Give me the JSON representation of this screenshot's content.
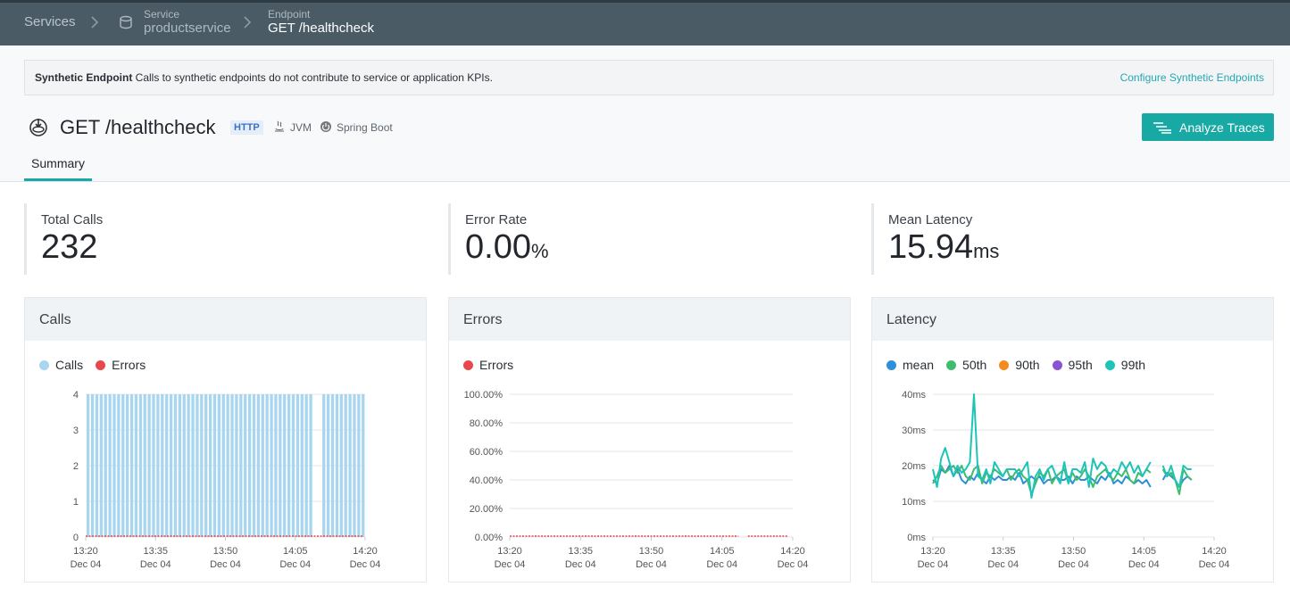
{
  "breadcrumb": {
    "services": "Services",
    "service_label": "Service",
    "service_value": "productservice",
    "endpoint_label": "Endpoint",
    "endpoint_value": "GET /healthcheck"
  },
  "banner": {
    "bold": "Synthetic Endpoint",
    "text": " Calls to synthetic endpoints do not contribute to service or application KPIs.",
    "link": "Configure Synthetic Endpoints"
  },
  "header": {
    "title": "GET /healthcheck",
    "badge": "HTTP",
    "tech1": "JVM",
    "tech2": "Spring Boot",
    "analyze_button": "Analyze Traces"
  },
  "tabs": [
    {
      "label": "Summary",
      "active": true
    }
  ],
  "kpis": {
    "total_calls": {
      "label": "Total Calls",
      "value": "232",
      "unit": ""
    },
    "error_rate": {
      "label": "Error Rate",
      "value": "0.00",
      "unit": "%"
    },
    "mean_latency": {
      "label": "Mean Latency",
      "value": "15.94",
      "unit": "ms"
    }
  },
  "colors": {
    "calls": "#a8d5f0",
    "errors": "#e8474c",
    "mean": "#2d8fd9",
    "p50": "#3ebd6e",
    "p90": "#f58b1f",
    "p95": "#8a52d4",
    "p99": "#1fc4b9",
    "accent": "#19a9a4"
  },
  "panels": {
    "calls": {
      "title": "Calls",
      "legend": [
        "Calls",
        "Errors"
      ]
    },
    "errors": {
      "title": "Errors",
      "legend": [
        "Errors"
      ]
    },
    "latency": {
      "title": "Latency",
      "legend": [
        "mean",
        "50th",
        "90th",
        "95th",
        "99th"
      ]
    }
  },
  "chart_data": [
    {
      "type": "bar",
      "title": "Calls",
      "x_ticks": [
        [
          "13:20",
          "Dec 04"
        ],
        [
          "13:35",
          "Dec 04"
        ],
        [
          "13:50",
          "Dec 04"
        ],
        [
          "14:05",
          "Dec 04"
        ],
        [
          "14:20",
          "Dec 04"
        ]
      ],
      "y_ticks": [
        "0",
        "1",
        "2",
        "3",
        "4"
      ],
      "ylim": [
        0,
        4
      ],
      "x_range_minutes": [
        0,
        60
      ],
      "series": [
        {
          "name": "Calls",
          "gaps_minutes": [
            [
              48.5,
              50.5
            ]
          ],
          "value": 4
        },
        {
          "name": "Errors",
          "value": 0
        }
      ]
    },
    {
      "type": "line",
      "title": "Errors",
      "x_ticks": [
        [
          "13:20",
          "Dec 04"
        ],
        [
          "13:35",
          "Dec 04"
        ],
        [
          "13:50",
          "Dec 04"
        ],
        [
          "14:05",
          "Dec 04"
        ],
        [
          "14:20",
          "Dec 04"
        ]
      ],
      "y_ticks": [
        "0.00%",
        "20.00%",
        "40.00%",
        "60.00%",
        "80.00%",
        "100.00%"
      ],
      "ylim": [
        0,
        100
      ],
      "series": [
        {
          "name": "Errors",
          "segments_minutes": [
            [
              0,
              48.5
            ],
            [
              50.5,
              59
            ]
          ],
          "value": 0
        }
      ]
    },
    {
      "type": "line",
      "title": "Latency",
      "x_ticks": [
        [
          "13:20",
          "Dec 04"
        ],
        [
          "13:35",
          "Dec 04"
        ],
        [
          "13:50",
          "Dec 04"
        ],
        [
          "14:05",
          "Dec 04"
        ],
        [
          "14:20",
          "Dec 04"
        ]
      ],
      "y_ticks": [
        "0ms",
        "10ms",
        "20ms",
        "30ms",
        "40ms"
      ],
      "ylim": [
        0,
        40
      ],
      "series": [
        {
          "name": "mean",
          "values": [
            16,
            15,
            19,
            18,
            20,
            17,
            19,
            16,
            15,
            17,
            16,
            18,
            16,
            15,
            17,
            16,
            17,
            16,
            16,
            17,
            16,
            18,
            15,
            16,
            17,
            16,
            17,
            15,
            16,
            16,
            17,
            16,
            16,
            17,
            15,
            17,
            16,
            16,
            17,
            16,
            15,
            17,
            16,
            18,
            15,
            16,
            15,
            17,
            16,
            15,
            16,
            15,
            16,
            14,
            null,
            null,
            16,
            18,
            17,
            16,
            14,
            16,
            17,
            16
          ]
        },
        {
          "name": "50th",
          "values": [
            15,
            17,
            20,
            18,
            19,
            20,
            18,
            20,
            17,
            16,
            19,
            20,
            15,
            18,
            17,
            19,
            18,
            17,
            19,
            16,
            18,
            19,
            17,
            16,
            12,
            15,
            18,
            17,
            19,
            15,
            17,
            18,
            19,
            15,
            18,
            16,
            17,
            19,
            17,
            14,
            17,
            18,
            19,
            17,
            16,
            18,
            17,
            19,
            16,
            15,
            18,
            17,
            19,
            18,
            null,
            null,
            19,
            17,
            18,
            16,
            12,
            19,
            17,
            16
          ]
        },
        {
          "name": "90th",
          "values": []
        },
        {
          "name": "95th",
          "values": []
        },
        {
          "name": "99th",
          "values": [
            19,
            14,
            22,
            25,
            21,
            17,
            20,
            18,
            19,
            21,
            40,
            17,
            16,
            19,
            15,
            21,
            19,
            17,
            19,
            19,
            19,
            17,
            19,
            21,
            11,
            17,
            19,
            16,
            19,
            20,
            17,
            15,
            21,
            15,
            19,
            19,
            18,
            21,
            14,
            22,
            19,
            21,
            20,
            17,
            19,
            18,
            21,
            19,
            21,
            18,
            20,
            17,
            19,
            21,
            null,
            null,
            20,
            17,
            20,
            16,
            14,
            20,
            19,
            19
          ]
        }
      ]
    }
  ]
}
